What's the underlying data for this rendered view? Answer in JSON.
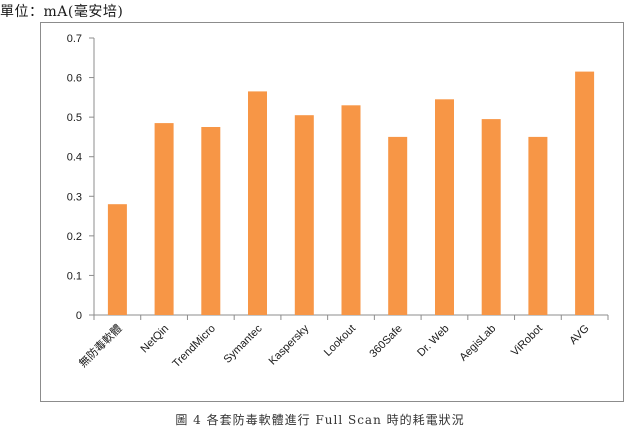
{
  "unit_label": "單位：mA(毫安培)",
  "caption": "圖 4 各套防毒軟體進行 Full Scan 時的耗電狀況",
  "bar_color": "#F79646",
  "chart_data": {
    "type": "bar",
    "categories": [
      "無防毒軟體",
      "NetQin",
      "TrendMicro",
      "Symantec",
      "Kaspersky",
      "Lookout",
      "360Safe",
      "Dr. Web",
      "AegisLab",
      "ViRobot",
      "AVG"
    ],
    "values": [
      0.28,
      0.485,
      0.475,
      0.565,
      0.505,
      0.53,
      0.45,
      0.545,
      0.495,
      0.45,
      0.615
    ],
    "ylim": [
      0,
      0.7
    ],
    "yticks": [
      "0",
      "0.1",
      "0.2",
      "0.3",
      "0.4",
      "0.5",
      "0.6",
      "0.7"
    ],
    "grid": false,
    "legend": "none"
  }
}
